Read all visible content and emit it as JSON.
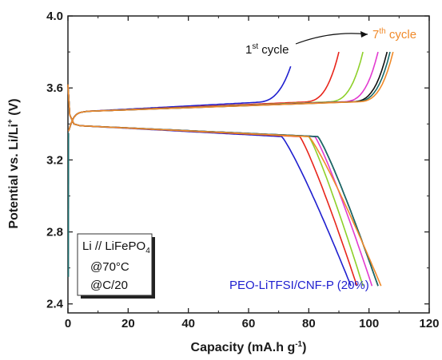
{
  "chart_data": {
    "type": "line",
    "xlabel": "Capacity (mA.h g",
    "xlabel_sup": "-1",
    "xlabel_close": ")",
    "ylabel": "Potential vs. Li/Li",
    "ylabel_sup": "+",
    "ylabel_close": " (V)",
    "xlim": [
      0,
      120
    ],
    "ylim": [
      2.35,
      4.0
    ],
    "xticks": [
      0,
      20,
      40,
      60,
      80,
      100,
      120
    ],
    "xtick_labels": [
      "0",
      "20",
      "40",
      "60",
      "80",
      "100",
      "120"
    ],
    "yticks": [
      2.4,
      2.8,
      3.2,
      3.6,
      4.0
    ],
    "ytick_labels": [
      "2.4",
      "2.8",
      "3.2",
      "3.6",
      "4.0"
    ],
    "grid": false,
    "annotations": {
      "first_cycle_base": "1",
      "first_cycle_sup": "st",
      "first_cycle_rest": " cycle",
      "seventh_cycle_base": "7",
      "seventh_cycle_sup": "th",
      "seventh_cycle_rest": " cycle",
      "cell_label": "Li // LiFePO",
      "cell_label_sub": "4",
      "temperature": "@70°C",
      "rate": "@C/20",
      "electrolyte": "PEO-LiTFSI/CNF-P (20%)"
    },
    "series": [
      {
        "color": "#1f1fcf",
        "charge_end": 74,
        "charge_v": 3.72,
        "discharge_knee": 71,
        "discharge_end": 94
      },
      {
        "color": "#e8251b",
        "charge_end": 90,
        "charge_v": 3.8,
        "discharge_knee": 77,
        "discharge_end": 96
      },
      {
        "color": "#8ed02a",
        "charge_end": 98,
        "charge_v": 3.8,
        "discharge_knee": 80,
        "discharge_end": 98
      },
      {
        "color": "#e23ad0",
        "charge_end": 103,
        "charge_v": 3.8,
        "discharge_knee": 82,
        "discharge_end": 101
      },
      {
        "color": "#111111",
        "charge_end": 106,
        "charge_v": 3.8,
        "discharge_knee": 83,
        "discharge_end": 103
      },
      {
        "color": "#1a6a6a",
        "charge_end": 107,
        "charge_v": 3.8,
        "discharge_knee": 83,
        "discharge_end": 103
      },
      {
        "color": "#f08a2a",
        "charge_end": 108,
        "charge_v": 3.8,
        "discharge_knee": 80,
        "discharge_end": 104
      }
    ]
  }
}
